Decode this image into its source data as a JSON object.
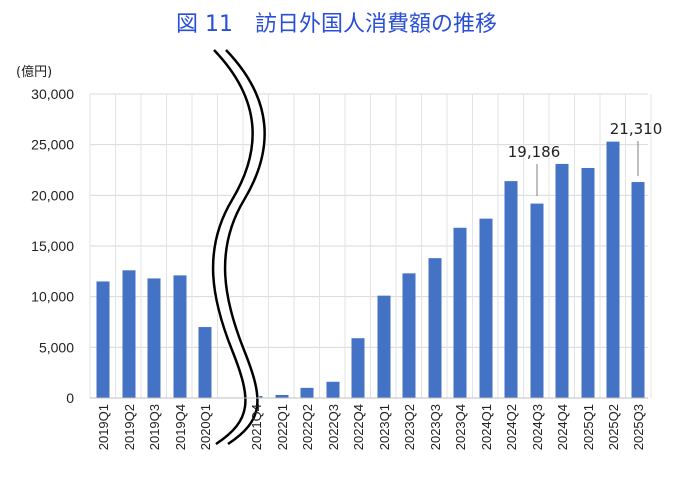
{
  "chart_data": {
    "type": "bar",
    "title": "図 11　訪日外国人消費額の推移",
    "ylabel": "(億円)",
    "ylim": [
      0,
      30000
    ],
    "yticks": [
      "0",
      "5,000",
      "10,000",
      "15,000",
      "20,000",
      "25,000",
      "30,000"
    ],
    "grid": true,
    "bar_color": "#4472c4",
    "axis_break_after": "2020Q1",
    "categories": [
      "2019Q1",
      "2019Q2",
      "2019Q3",
      "2019Q4",
      "2020Q1",
      "2021Q4",
      "2022Q1",
      "2022Q2",
      "2022Q3",
      "2022Q4",
      "2023Q1",
      "2023Q2",
      "2023Q3",
      "2023Q4",
      "2024Q1",
      "2024Q2",
      "2024Q3",
      "2024Q4",
      "2025Q1",
      "2025Q2",
      "2025Q3"
    ],
    "values": [
      11500,
      12600,
      11800,
      12100,
      7000,
      200,
      300,
      1000,
      1600,
      5900,
      10100,
      12300,
      13800,
      16800,
      17700,
      21400,
      19186,
      23100,
      22700,
      25300,
      21310
    ],
    "data_labels": [
      {
        "category": "2024Q3",
        "text": "19,186"
      },
      {
        "category": "2025Q3",
        "text": "21,310"
      }
    ]
  }
}
